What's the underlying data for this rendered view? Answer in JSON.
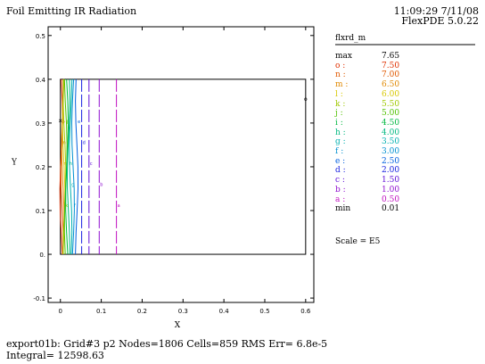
{
  "header": {
    "title": "Foil Emitting IR Radiation",
    "timestamp": "11:09:29 7/11/08",
    "version": "FlexPDE 5.0.22"
  },
  "footer": {
    "line1": "export01b:  Grid#3  p2  Nodes=1806 Cells=859 RMS Err= 6.8e-5",
    "line2": "Integral=  12598.63"
  },
  "legend": {
    "title": "flxrd_m",
    "scale": "Scale = E5",
    "entries": [
      {
        "label": "max",
        "value": "7.65",
        "color": "#000000"
      },
      {
        "label": "o :",
        "value": "7.50",
        "color": "#e03000"
      },
      {
        "label": "n :",
        "value": "7.00",
        "color": "#e05800"
      },
      {
        "label": "m :",
        "value": "6.50",
        "color": "#e08800"
      },
      {
        "label": "l :",
        "value": "6.00",
        "color": "#d8c800"
      },
      {
        "label": "k :",
        "value": "5.50",
        "color": "#a0c800"
      },
      {
        "label": "j :",
        "value": "5.00",
        "color": "#50c000"
      },
      {
        "label": "i :",
        "value": "4.50",
        "color": "#00b840"
      },
      {
        "label": "h :",
        "value": "4.00",
        "color": "#00b880"
      },
      {
        "label": "g :",
        "value": "3.50",
        "color": "#00b0b0"
      },
      {
        "label": "f :",
        "value": "3.00",
        "color": "#0090d0"
      },
      {
        "label": "e :",
        "value": "2.50",
        "color": "#0060e0"
      },
      {
        "label": "d :",
        "value": "2.00",
        "color": "#1820e0"
      },
      {
        "label": "c :",
        "value": "1.50",
        "color": "#6010d8"
      },
      {
        "label": "b :",
        "value": "1.00",
        "color": "#9010d0"
      },
      {
        "label": "a :",
        "value": "0.50",
        "color": "#c010c0"
      },
      {
        "label": "min",
        "value": "0.01",
        "color": "#000000"
      }
    ]
  },
  "chart_data": {
    "type": "contour",
    "xlabel": "X",
    "ylabel": "Y",
    "xlim": [
      -0.03,
      0.62
    ],
    "ylim": [
      -0.11,
      0.52
    ],
    "xticks": [
      0,
      0.1,
      0.2,
      0.3,
      0.4,
      0.5,
      0.6
    ],
    "xtick_labels": [
      "0",
      "0.1",
      "0.2",
      "0.3",
      "0.4",
      "0.5",
      "0.6"
    ],
    "yticks": [
      -0.1,
      0,
      0.1,
      0.2,
      0.3,
      0.4,
      0.5
    ],
    "ytick_labels": [
      "-0.1",
      "0.",
      "0.1",
      "0.2",
      "0.3",
      "0.4",
      "0.5"
    ],
    "domain": {
      "x": [
        0,
        0.6
      ],
      "y": [
        0,
        0.4
      ]
    },
    "contours": [
      {
        "level": "o",
        "x": 0.002,
        "color": "#e03000"
      },
      {
        "level": "n",
        "x": 0.004,
        "color": "#e05800"
      },
      {
        "level": "m",
        "x": 0.006,
        "color": "#e08800"
      },
      {
        "level": "l",
        "x": 0.008,
        "color": "#d8c800"
      },
      {
        "level": "k",
        "x": 0.01,
        "color": "#a0c800"
      },
      {
        "level": "j",
        "x": 0.013,
        "color": "#50c000"
      },
      {
        "level": "i",
        "x": 0.016,
        "color": "#00b840"
      },
      {
        "level": "h",
        "x": 0.02,
        "color": "#00b880"
      },
      {
        "level": "g",
        "x": 0.025,
        "color": "#00b0b0"
      },
      {
        "level": "f",
        "x": 0.031,
        "color": "#0090d0"
      },
      {
        "level": "e",
        "x": 0.04,
        "color": "#0060e0"
      },
      {
        "level": "d",
        "x": 0.052,
        "color": "#1820e0"
      },
      {
        "level": "c",
        "x": 0.07,
        "color": "#6010d8"
      },
      {
        "level": "b",
        "x": 0.095,
        "color": "#9010d0"
      },
      {
        "level": "a",
        "x": 0.137,
        "color": "#c010c0"
      }
    ],
    "markers": [
      {
        "x": 0.0,
        "y": 0.305,
        "label": "max"
      },
      {
        "x": 0.6,
        "y": 0.355,
        "label": "min"
      }
    ]
  }
}
